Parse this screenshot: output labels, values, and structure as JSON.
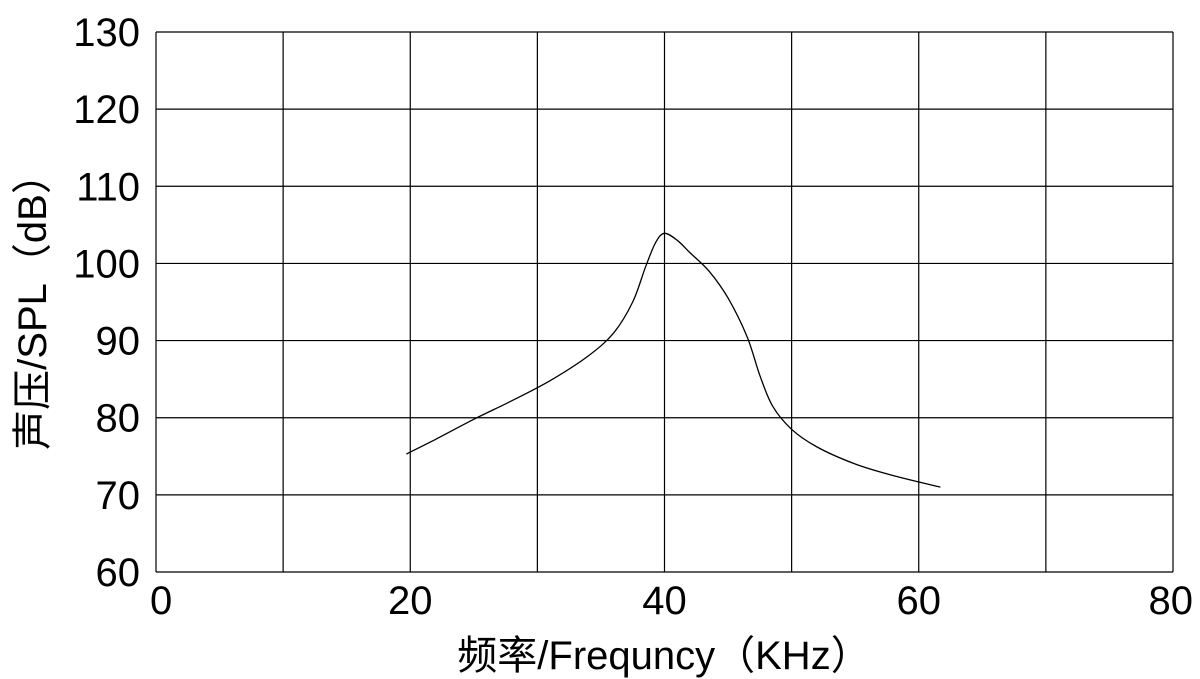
{
  "chart_data": {
    "type": "line",
    "title": "",
    "xlabel": "频率/Frequncy（KHz）",
    "ylabel": "声压/SPL（dB）",
    "xlim": [
      0,
      80
    ],
    "ylim": [
      60,
      130
    ],
    "x_ticks": [
      "0",
      "20",
      "40",
      "60",
      "80"
    ],
    "y_ticks": [
      "60",
      "70",
      "80",
      "90",
      "100",
      "110",
      "120",
      "130"
    ],
    "grid": true,
    "series": [
      {
        "x": [
          19.7,
          22,
          25,
          28,
          31,
          34,
          36,
          37.5,
          38.5,
          39.3,
          40,
          41,
          42,
          43.5,
          45,
          46.5,
          47.5,
          48.5,
          50,
          52,
          55,
          58,
          61.7
        ],
        "y": [
          75.3,
          77.2,
          79.8,
          82.2,
          84.8,
          88.0,
          91.0,
          95.0,
          99.5,
          102.7,
          103.9,
          103.0,
          101.4,
          99.0,
          95.5,
          90.5,
          85.5,
          81.5,
          78.5,
          76.2,
          74.0,
          72.5,
          71.0
        ]
      }
    ]
  },
  "colors": {
    "line": "#000000",
    "grid": "#000000",
    "background": "#ffffff"
  }
}
